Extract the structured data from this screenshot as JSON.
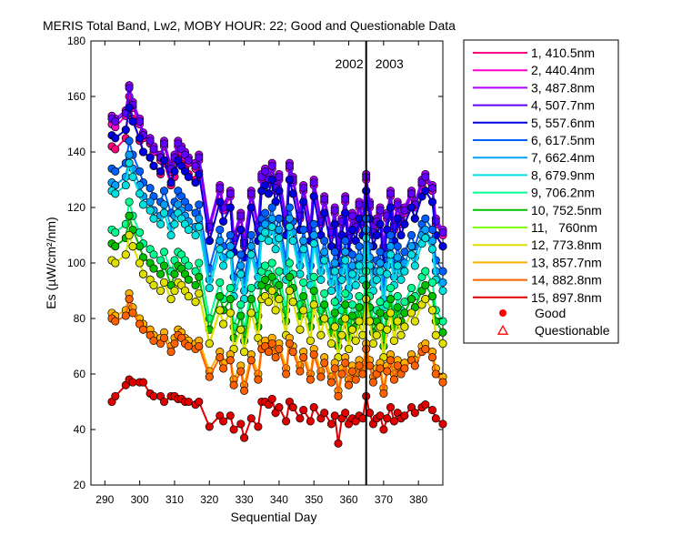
{
  "chart_data": {
    "type": "line",
    "title": "MERIS Total Band,  Lw2, MOBY HOUR: 22;  Good and Questionable Data",
    "xlabel": "Sequential Day",
    "ylabel": "Es (µW/cm²/nm)",
    "xlim": [
      286,
      387
    ],
    "ylim": [
      20,
      180
    ],
    "xticks": [
      290,
      300,
      310,
      320,
      330,
      340,
      350,
      360,
      370,
      380
    ],
    "yticks": [
      20,
      40,
      60,
      80,
      100,
      120,
      140,
      160,
      180
    ],
    "grid": false,
    "legend_position": "outside-right",
    "year_divider": {
      "x": 365,
      "left_label": "2002",
      "right_label": "2003"
    },
    "legend_markers": [
      {
        "label": "Good",
        "marker": "filled-circle",
        "color": "#ff0000"
      },
      {
        "label": "Questionable",
        "marker": "open-triangle",
        "color": "#ff0000"
      }
    ],
    "x": [
      292,
      293,
      296,
      297,
      298,
      300,
      301,
      303,
      304,
      306,
      307,
      309,
      310,
      311,
      312,
      313,
      314,
      316,
      317,
      320,
      323,
      324,
      326,
      327,
      329,
      330,
      332,
      334,
      335,
      336,
      337,
      338,
      339,
      340,
      342,
      343,
      344,
      346,
      347,
      349,
      350,
      352,
      353,
      355,
      356,
      357,
      358,
      359,
      360,
      361,
      362,
      363,
      364,
      365,
      366,
      367,
      368,
      369,
      370,
      371,
      372,
      373,
      374,
      375,
      376,
      378,
      379,
      381,
      382,
      384,
      385,
      387
    ],
    "series": [
      {
        "name": "1, 410.5nm",
        "color": "#ff0080",
        "values": [
          142,
          141,
          145,
          160,
          152,
          144,
          140,
          138,
          135,
          132,
          136,
          128,
          131,
          138,
          136,
          134,
          132,
          130,
          133,
          108,
          122,
          115,
          120,
          104,
          112,
          102,
          120,
          108,
          126,
          128,
          125,
          130,
          122,
          126,
          110,
          130,
          125,
          112,
          122,
          108,
          124,
          110,
          118,
          106,
          114,
          100,
          110,
          118,
          104,
          112,
          108,
          116,
          110,
          126,
          116,
          106,
          110,
          114,
          100,
          112,
          120,
          108,
          116,
          110,
          114,
          120,
          116,
          124,
          126,
          122,
          110,
          106
        ]
      },
      {
        "name": "2, 440.4nm",
        "color": "#ff00d0",
        "values": [
          150,
          149,
          153,
          164,
          156,
          150,
          145,
          143,
          140,
          137,
          142,
          133,
          137,
          142,
          140,
          138,
          136,
          134,
          137,
          112,
          126,
          119,
          124,
          108,
          116,
          106,
          124,
          112,
          130,
          132,
          129,
          134,
          126,
          130,
          114,
          134,
          129,
          116,
          126,
          112,
          128,
          114,
          122,
          110,
          118,
          104,
          114,
          122,
          108,
          116,
          112,
          120,
          114,
          130,
          120,
          110,
          114,
          118,
          104,
          116,
          124,
          112,
          120,
          114,
          118,
          124,
          120,
          128,
          130,
          126,
          114,
          110
        ]
      },
      {
        "name": "3, 487.8nm",
        "color": "#b000ff",
        "values": [
          153,
          152,
          155,
          164,
          158,
          152,
          147,
          145,
          142,
          139,
          144,
          135,
          139,
          144,
          142,
          140,
          138,
          136,
          139,
          114,
          128,
          121,
          126,
          110,
          118,
          108,
          126,
          114,
          132,
          134,
          131,
          136,
          128,
          132,
          116,
          136,
          131,
          118,
          128,
          114,
          130,
          116,
          124,
          112,
          120,
          106,
          116,
          124,
          110,
          118,
          114,
          122,
          116,
          132,
          122,
          112,
          116,
          120,
          106,
          118,
          126,
          114,
          122,
          116,
          120,
          126,
          122,
          130,
          132,
          128,
          116,
          112
        ]
      },
      {
        "name": "4, 507.7nm",
        "color": "#6000ff",
        "values": [
          152,
          151,
          154,
          163,
          157,
          151,
          146,
          144,
          141,
          138,
          143,
          134,
          138,
          143,
          141,
          139,
          137,
          135,
          138,
          113,
          127,
          120,
          125,
          109,
          117,
          107,
          125,
          113,
          131,
          133,
          130,
          135,
          127,
          131,
          115,
          135,
          130,
          117,
          127,
          113,
          129,
          115,
          123,
          111,
          119,
          105,
          115,
          123,
          109,
          117,
          113,
          121,
          115,
          131,
          121,
          111,
          115,
          119,
          105,
          117,
          125,
          113,
          121,
          115,
          119,
          125,
          121,
          129,
          131,
          127,
          115,
          111
        ]
      },
      {
        "name": "5, 557.6nm",
        "color": "#0000e0",
        "values": [
          146,
          145,
          148,
          156,
          151,
          145,
          140,
          138,
          135,
          133,
          137,
          129,
          133,
          137,
          135,
          133,
          131,
          129,
          132,
          108,
          122,
          115,
          120,
          104,
          112,
          102,
          120,
          108,
          126,
          128,
          125,
          130,
          122,
          126,
          110,
          130,
          125,
          112,
          122,
          108,
          124,
          110,
          118,
          106,
          114,
          100,
          110,
          118,
          104,
          112,
          108,
          116,
          110,
          126,
          116,
          106,
          110,
          114,
          100,
          112,
          120,
          108,
          116,
          110,
          114,
          120,
          116,
          124,
          126,
          122,
          110,
          106
        ]
      },
      {
        "name": "6, 617.5nm",
        "color": "#0060ff",
        "values": [
          134,
          133,
          136,
          144,
          139,
          133,
          129,
          127,
          124,
          122,
          126,
          118,
          122,
          126,
          124,
          122,
          120,
          118,
          121,
          98,
          112,
          106,
          110,
          95,
          103,
          94,
          110,
          99,
          116,
          118,
          115,
          120,
          112,
          116,
          101,
          120,
          115,
          103,
          112,
          99,
          114,
          101,
          108,
          97,
          104,
          91,
          101,
          108,
          95,
          103,
          99,
          106,
          101,
          116,
          106,
          97,
          101,
          104,
          91,
          103,
          110,
          99,
          106,
          101,
          104,
          110,
          106,
          114,
          116,
          112,
          101,
          97
        ]
      },
      {
        "name": "7, 662.4nm",
        "color": "#00a0ff",
        "values": [
          129,
          128,
          131,
          139,
          134,
          128,
          124,
          122,
          119,
          117,
          121,
          113,
          117,
          121,
          119,
          117,
          115,
          113,
          116,
          94,
          108,
          102,
          106,
          91,
          99,
          90,
          106,
          95,
          112,
          114,
          111,
          116,
          108,
          112,
          97,
          116,
          111,
          99,
          108,
          95,
          110,
          97,
          104,
          93,
          100,
          87,
          97,
          104,
          91,
          99,
          95,
          102,
          97,
          112,
          102,
          93,
          97,
          100,
          87,
          99,
          106,
          95,
          102,
          97,
          100,
          106,
          102,
          110,
          112,
          108,
          97,
          93
        ]
      },
      {
        "name": "8, 679.9nm",
        "color": "#00e0e0",
        "values": [
          126,
          125,
          128,
          136,
          131,
          125,
          121,
          119,
          116,
          114,
          118,
          110,
          114,
          118,
          116,
          114,
          112,
          110,
          113,
          91,
          105,
          99,
          103,
          88,
          96,
          87,
          103,
          92,
          109,
          111,
          108,
          113,
          105,
          109,
          94,
          113,
          108,
          96,
          105,
          92,
          107,
          94,
          101,
          90,
          97,
          84,
          94,
          101,
          88,
          96,
          92,
          99,
          94,
          109,
          99,
          90,
          94,
          97,
          84,
          96,
          103,
          92,
          99,
          94,
          97,
          103,
          99,
          107,
          109,
          105,
          94,
          90
        ]
      },
      {
        "name": "9, 706.2nm",
        "color": "#00ff90",
        "values": [
          112,
          111,
          114,
          122,
          117,
          111,
          107,
          105,
          103,
          101,
          104,
          97,
          101,
          104,
          103,
          101,
          99,
          97,
          100,
          80,
          93,
          87,
          91,
          77,
          85,
          76,
          91,
          81,
          97,
          99,
          96,
          100,
          93,
          97,
          83,
          100,
          96,
          85,
          93,
          81,
          95,
          83,
          89,
          79,
          86,
          74,
          83,
          89,
          77,
          85,
          81,
          88,
          83,
          97,
          88,
          79,
          83,
          86,
          74,
          85,
          91,
          81,
          88,
          83,
          86,
          91,
          88,
          95,
          97,
          93,
          83,
          79
        ]
      },
      {
        "name": "10, 752.5nm",
        "color": "#00c000",
        "values": [
          107,
          106,
          109,
          117,
          112,
          106,
          102,
          100,
          98,
          96,
          99,
          92,
          96,
          99,
          98,
          96,
          94,
          92,
          95,
          76,
          88,
          83,
          87,
          73,
          81,
          72,
          87,
          77,
          92,
          94,
          91,
          95,
          88,
          92,
          79,
          95,
          91,
          81,
          88,
          77,
          90,
          79,
          85,
          75,
          82,
          70,
          79,
          85,
          73,
          81,
          77,
          84,
          79,
          92,
          84,
          75,
          79,
          82,
          70,
          81,
          87,
          77,
          84,
          79,
          82,
          87,
          84,
          90,
          92,
          88,
          79,
          75
        ]
      },
      {
        "name": "11,   760nm",
        "color": "#80ff00",
        "values": [
          101,
          100,
          103,
          110,
          106,
          100,
          96,
          94,
          92,
          90,
          93,
          87,
          90,
          93,
          92,
          90,
          88,
          86,
          89,
          71,
          83,
          78,
          82,
          69,
          76,
          68,
          82,
          73,
          87,
          88,
          86,
          90,
          83,
          87,
          74,
          90,
          86,
          76,
          83,
          72,
          85,
          74,
          80,
          71,
          77,
          66,
          74,
          80,
          69,
          76,
          72,
          79,
          74,
          87,
          79,
          71,
          74,
          77,
          66,
          76,
          82,
          72,
          79,
          74,
          77,
          82,
          79,
          85,
          87,
          83,
          74,
          71
        ]
      },
      {
        "name": "12, 773.8nm",
        "color": "#e0e000",
        "values": [
          101,
          100,
          103,
          110,
          106,
          100,
          96,
          94,
          92,
          90,
          93,
          87,
          90,
          93,
          92,
          90,
          88,
          86,
          89,
          71,
          83,
          78,
          82,
          69,
          76,
          68,
          82,
          73,
          87,
          88,
          86,
          90,
          83,
          87,
          74,
          90,
          86,
          76,
          83,
          72,
          85,
          74,
          80,
          71,
          77,
          66,
          74,
          80,
          69,
          76,
          72,
          79,
          74,
          87,
          79,
          71,
          74,
          77,
          66,
          76,
          82,
          72,
          79,
          74,
          77,
          82,
          79,
          85,
          87,
          83,
          74,
          71
        ]
      },
      {
        "name": "13, 857.7nm",
        "color": "#ffb000",
        "values": [
          82,
          81,
          83,
          89,
          84,
          80,
          78,
          76,
          74,
          73,
          75,
          70,
          73,
          76,
          75,
          73,
          72,
          71,
          72,
          61,
          68,
          64,
          67,
          58,
          63,
          56,
          67,
          60,
          71,
          72,
          70,
          73,
          68,
          71,
          62,
          73,
          70,
          63,
          68,
          60,
          69,
          61,
          66,
          59,
          64,
          54,
          62,
          66,
          58,
          63,
          60,
          65,
          62,
          71,
          65,
          59,
          62,
          64,
          55,
          63,
          67,
          60,
          65,
          62,
          64,
          67,
          65,
          70,
          71,
          68,
          62,
          59
        ]
      },
      {
        "name": "14, 882.8nm",
        "color": "#ff6000",
        "values": [
          80,
          79,
          81,
          87,
          82,
          78,
          76,
          74,
          72,
          71,
          73,
          68,
          71,
          74,
          73,
          71,
          70,
          69,
          70,
          59,
          66,
          62,
          65,
          56,
          61,
          54,
          65,
          58,
          69,
          70,
          68,
          71,
          66,
          69,
          60,
          71,
          68,
          61,
          66,
          58,
          67,
          59,
          64,
          57,
          62,
          52,
          60,
          64,
          56,
          61,
          58,
          63,
          60,
          69,
          63,
          57,
          60,
          62,
          53,
          61,
          65,
          58,
          63,
          60,
          62,
          65,
          63,
          68,
          69,
          66,
          60,
          57
        ]
      },
      {
        "name": "15, 897.8nm",
        "color": "#e00000",
        "values": [
          50,
          52,
          56,
          58,
          57,
          57,
          57,
          53,
          52,
          52,
          50,
          52,
          52,
          51,
          51,
          50,
          50,
          49,
          50,
          41,
          45,
          43,
          45,
          40,
          42,
          37,
          44,
          41,
          50,
          50,
          49,
          51,
          46,
          48,
          43,
          50,
          48,
          44,
          47,
          43,
          48,
          44,
          46,
          42,
          45,
          35,
          44,
          46,
          42,
          44,
          43,
          45,
          44,
          52,
          46,
          42,
          44,
          45,
          40,
          44,
          48,
          43,
          46,
          44,
          45,
          48,
          46,
          48,
          49,
          47,
          44,
          42
        ]
      }
    ]
  }
}
